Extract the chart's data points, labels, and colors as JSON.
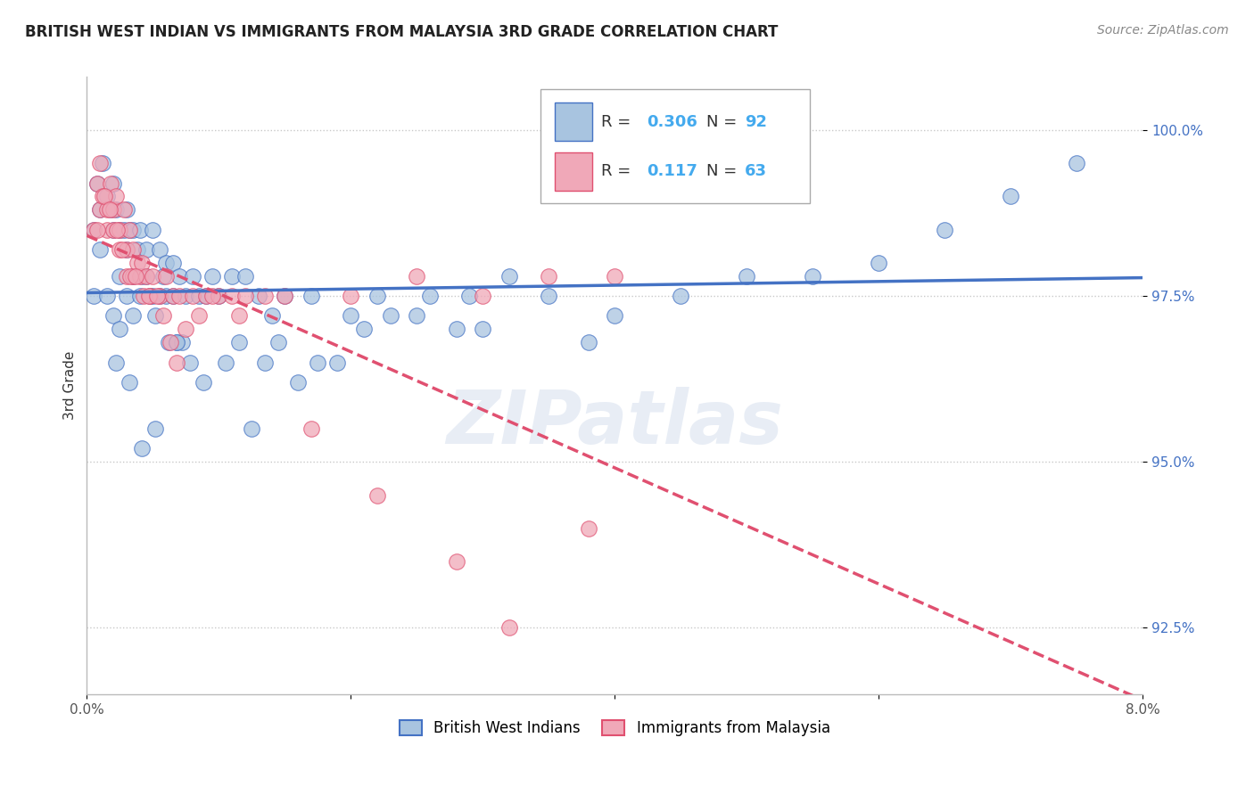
{
  "title": "BRITISH WEST INDIAN VS IMMIGRANTS FROM MALAYSIA 3RD GRADE CORRELATION CHART",
  "source": "Source: ZipAtlas.com",
  "ylabel": "3rd Grade",
  "xmin": 0.0,
  "xmax": 8.0,
  "ymin": 91.5,
  "ymax": 100.8,
  "yticks": [
    92.5,
    95.0,
    97.5,
    100.0
  ],
  "ytick_labels": [
    "92.5%",
    "95.0%",
    "97.5%",
    "100.0%"
  ],
  "blue_R": 0.306,
  "blue_N": 92,
  "pink_R": 0.117,
  "pink_N": 63,
  "blue_color": "#a8c4e0",
  "pink_color": "#f0a8b8",
  "blue_line_color": "#4472c4",
  "pink_line_color": "#e05070",
  "legend_R_color": "#44aaee",
  "blue_x": [
    0.05,
    0.05,
    0.08,
    0.1,
    0.1,
    0.12,
    0.15,
    0.15,
    0.18,
    0.2,
    0.2,
    0.2,
    0.22,
    0.25,
    0.25,
    0.25,
    0.28,
    0.3,
    0.3,
    0.3,
    0.32,
    0.35,
    0.35,
    0.35,
    0.38,
    0.4,
    0.4,
    0.42,
    0.45,
    0.45,
    0.48,
    0.5,
    0.5,
    0.52,
    0.55,
    0.55,
    0.58,
    0.6,
    0.6,
    0.62,
    0.65,
    0.65,
    0.68,
    0.7,
    0.72,
    0.75,
    0.8,
    0.85,
    0.9,
    0.95,
    1.0,
    1.05,
    1.1,
    1.15,
    1.2,
    1.3,
    1.4,
    1.5,
    1.6,
    1.7,
    1.9,
    2.0,
    2.2,
    2.5,
    2.8,
    3.0,
    3.5,
    3.8,
    4.0,
    4.5,
    5.0,
    5.5,
    6.0,
    6.5,
    7.0,
    7.5,
    1.25,
    0.42,
    0.52,
    0.32,
    0.22,
    0.68,
    0.78,
    0.88,
    1.35,
    1.45,
    1.75,
    2.1,
    2.3,
    2.6,
    2.9,
    3.2
  ],
  "blue_y": [
    97.5,
    98.5,
    99.2,
    98.2,
    98.8,
    99.5,
    99.0,
    97.5,
    98.8,
    99.2,
    98.5,
    97.2,
    98.8,
    98.5,
    97.8,
    97.0,
    98.5,
    98.8,
    98.2,
    97.5,
    98.5,
    98.5,
    97.8,
    97.2,
    98.2,
    98.5,
    97.5,
    97.8,
    98.2,
    97.8,
    97.5,
    98.5,
    97.5,
    97.2,
    98.2,
    97.5,
    97.8,
    98.0,
    97.5,
    96.8,
    98.0,
    97.5,
    96.8,
    97.8,
    96.8,
    97.5,
    97.8,
    97.5,
    97.5,
    97.8,
    97.5,
    96.5,
    97.8,
    96.8,
    97.8,
    97.5,
    97.2,
    97.5,
    96.2,
    97.5,
    96.5,
    97.2,
    97.5,
    97.2,
    97.0,
    97.0,
    97.5,
    96.8,
    97.2,
    97.5,
    97.8,
    97.8,
    98.0,
    98.5,
    99.0,
    99.5,
    95.5,
    95.2,
    95.5,
    96.2,
    96.5,
    96.8,
    96.5,
    96.2,
    96.5,
    96.8,
    96.5,
    97.0,
    97.2,
    97.5,
    97.5,
    97.8
  ],
  "pink_x": [
    0.05,
    0.08,
    0.1,
    0.1,
    0.12,
    0.15,
    0.15,
    0.18,
    0.2,
    0.2,
    0.22,
    0.25,
    0.25,
    0.28,
    0.3,
    0.3,
    0.32,
    0.35,
    0.35,
    0.38,
    0.4,
    0.42,
    0.45,
    0.48,
    0.5,
    0.55,
    0.6,
    0.65,
    0.7,
    0.8,
    0.9,
    1.0,
    1.1,
    1.2,
    1.5,
    2.0,
    2.5,
    3.0,
    3.5,
    4.0,
    0.08,
    0.13,
    0.17,
    0.23,
    0.27,
    0.33,
    0.37,
    0.43,
    0.47,
    0.53,
    0.58,
    0.63,
    0.68,
    0.75,
    0.85,
    0.95,
    1.15,
    1.35,
    1.7,
    2.2,
    2.8,
    3.2,
    3.8
  ],
  "pink_y": [
    98.5,
    99.2,
    98.8,
    99.5,
    99.0,
    98.5,
    98.8,
    99.2,
    98.5,
    98.8,
    99.0,
    98.2,
    98.5,
    98.8,
    98.2,
    97.8,
    98.5,
    98.2,
    97.8,
    98.0,
    97.8,
    98.0,
    97.8,
    97.5,
    97.8,
    97.5,
    97.8,
    97.5,
    97.5,
    97.5,
    97.5,
    97.5,
    97.5,
    97.5,
    97.5,
    97.5,
    97.8,
    97.5,
    97.8,
    97.8,
    98.5,
    99.0,
    98.8,
    98.5,
    98.2,
    97.8,
    97.8,
    97.5,
    97.5,
    97.5,
    97.2,
    96.8,
    96.5,
    97.0,
    97.2,
    97.5,
    97.2,
    97.5,
    95.5,
    94.5,
    93.5,
    92.5,
    94.0
  ]
}
